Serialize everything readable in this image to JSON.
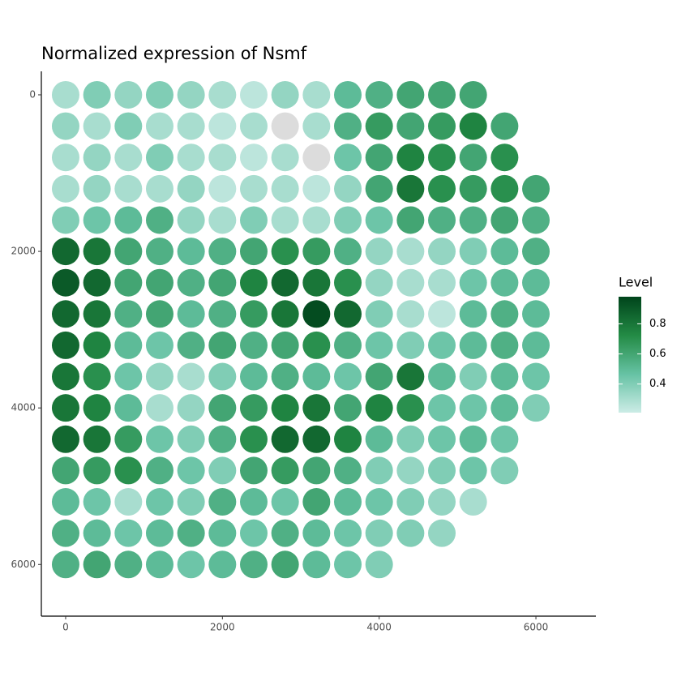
{
  "chart_data": {
    "type": "scatter",
    "title": "Normalized expression of Nsmf",
    "legend_title": "Level",
    "x": [
      0,
      400,
      800,
      1200,
      1600,
      2000,
      2400,
      2800,
      3200,
      3600,
      4000,
      4400,
      4800,
      5200,
      0,
      400,
      800,
      1200,
      1600,
      2000,
      2400,
      2800,
      3200,
      3600,
      4000,
      4400,
      4800,
      5200,
      5600,
      0,
      400,
      800,
      1200,
      1600,
      2000,
      2400,
      2800,
      3200,
      3600,
      4000,
      4400,
      4800,
      5200,
      5600,
      0,
      400,
      800,
      1200,
      1600,
      2000,
      2400,
      2800,
      3200,
      3600,
      4000,
      4400,
      4800,
      5200,
      5600,
      6000,
      0,
      400,
      800,
      1200,
      1600,
      2000,
      2400,
      2800,
      3200,
      3600,
      4000,
      4400,
      4800,
      5200,
      5600,
      6000,
      0,
      400,
      800,
      1200,
      1600,
      2000,
      2400,
      2800,
      3200,
      3600,
      4000,
      4400,
      4800,
      5200,
      5600,
      6000,
      0,
      400,
      800,
      1200,
      1600,
      2000,
      2400,
      2800,
      3200,
      3600,
      4000,
      4400,
      4800,
      5200,
      5600,
      6000,
      0,
      400,
      800,
      1200,
      1600,
      2000,
      2400,
      2800,
      3200,
      3600,
      4000,
      4400,
      4800,
      5200,
      5600,
      6000,
      0,
      400,
      800,
      1200,
      1600,
      2000,
      2400,
      2800,
      3200,
      3600,
      4000,
      4400,
      4800,
      5200,
      5600,
      6000,
      0,
      400,
      800,
      1200,
      1600,
      2000,
      2400,
      2800,
      3200,
      3600,
      4000,
      4400,
      4800,
      5200,
      5600,
      6000,
      0,
      400,
      800,
      1200,
      1600,
      2000,
      2400,
      2800,
      3200,
      3600,
      4000,
      4400,
      4800,
      5200,
      5600,
      6000,
      0,
      400,
      800,
      1200,
      1600,
      2000,
      2400,
      2800,
      3200,
      3600,
      4000,
      4400,
      4800,
      5200,
      5600,
      0,
      400,
      800,
      1200,
      1600,
      2000,
      2400,
      2800,
      3200,
      3600,
      4000,
      4400,
      4800,
      5200,
      5600,
      0,
      400,
      800,
      1200,
      1600,
      2000,
      2400,
      2800,
      3200,
      3600,
      4000,
      4400,
      4800,
      5200,
      0,
      400,
      800,
      1200,
      1600,
      2000,
      2400,
      2800,
      3200,
      3600,
      4000,
      4400,
      4800,
      0,
      400,
      800,
      1200,
      1600,
      2000,
      2400,
      2800,
      3200,
      3600,
      4000
    ],
    "y": [
      0,
      0,
      0,
      0,
      0,
      0,
      0,
      0,
      0,
      0,
      0,
      0,
      0,
      0,
      400,
      400,
      400,
      400,
      400,
      400,
      400,
      400,
      400,
      400,
      400,
      400,
      400,
      400,
      400,
      800,
      800,
      800,
      800,
      800,
      800,
      800,
      800,
      800,
      800,
      800,
      800,
      800,
      800,
      800,
      1200,
      1200,
      1200,
      1200,
      1200,
      1200,
      1200,
      1200,
      1200,
      1200,
      1200,
      1200,
      1200,
      1200,
      1200,
      1200,
      1600,
      1600,
      1600,
      1600,
      1600,
      1600,
      1600,
      1600,
      1600,
      1600,
      1600,
      1600,
      1600,
      1600,
      1600,
      1600,
      2000,
      2000,
      2000,
      2000,
      2000,
      2000,
      2000,
      2000,
      2000,
      2000,
      2000,
      2000,
      2000,
      2000,
      2000,
      2000,
      2400,
      2400,
      2400,
      2400,
      2400,
      2400,
      2400,
      2400,
      2400,
      2400,
      2400,
      2400,
      2400,
      2400,
      2400,
      2400,
      2800,
      2800,
      2800,
      2800,
      2800,
      2800,
      2800,
      2800,
      2800,
      2800,
      2800,
      2800,
      2800,
      2800,
      2800,
      2800,
      3200,
      3200,
      3200,
      3200,
      3200,
      3200,
      3200,
      3200,
      3200,
      3200,
      3200,
      3200,
      3200,
      3200,
      3200,
      3200,
      3600,
      3600,
      3600,
      3600,
      3600,
      3600,
      3600,
      3600,
      3600,
      3600,
      3600,
      3600,
      3600,
      3600,
      3600,
      3600,
      4000,
      4000,
      4000,
      4000,
      4000,
      4000,
      4000,
      4000,
      4000,
      4000,
      4000,
      4000,
      4000,
      4000,
      4000,
      4000,
      4400,
      4400,
      4400,
      4400,
      4400,
      4400,
      4400,
      4400,
      4400,
      4400,
      4400,
      4400,
      4400,
      4400,
      4400,
      4800,
      4800,
      4800,
      4800,
      4800,
      4800,
      4800,
      4800,
      4800,
      4800,
      4800,
      4800,
      4800,
      4800,
      4800,
      5200,
      5200,
      5200,
      5200,
      5200,
      5200,
      5200,
      5200,
      5200,
      5200,
      5200,
      5200,
      5200,
      5200,
      5600,
      5600,
      5600,
      5600,
      5600,
      5600,
      5600,
      5600,
      5600,
      5600,
      5600,
      5600,
      5600,
      6000,
      6000,
      6000,
      6000,
      6000,
      6000,
      6000,
      6000,
      6000,
      6000,
      6000
    ],
    "values": [
      0.3,
      0.4,
      0.35,
      0.4,
      0.35,
      0.3,
      0.25,
      0.35,
      0.3,
      0.5,
      0.55,
      0.6,
      0.6,
      0.6,
      0.35,
      0.3,
      0.4,
      0.3,
      0.3,
      0.25,
      0.3,
      0.2,
      0.3,
      0.55,
      0.65,
      0.6,
      0.65,
      0.75,
      0.6,
      0.3,
      0.35,
      0.3,
      0.4,
      0.3,
      0.3,
      0.25,
      0.3,
      0.2,
      0.45,
      0.6,
      0.75,
      0.7,
      0.6,
      0.7,
      0.3,
      0.35,
      0.3,
      0.3,
      0.35,
      0.25,
      0.3,
      0.3,
      0.25,
      0.35,
      0.6,
      0.8,
      0.7,
      0.65,
      0.7,
      0.6,
      0.4,
      0.45,
      0.5,
      0.55,
      0.35,
      0.3,
      0.4,
      0.3,
      0.3,
      0.4,
      0.45,
      0.6,
      0.55,
      0.55,
      0.6,
      0.55,
      0.85,
      0.8,
      0.6,
      0.55,
      0.5,
      0.55,
      0.6,
      0.7,
      0.65,
      0.55,
      0.35,
      0.3,
      0.35,
      0.4,
      0.5,
      0.55,
      0.9,
      0.85,
      0.6,
      0.6,
      0.55,
      0.6,
      0.75,
      0.85,
      0.8,
      0.7,
      0.35,
      0.3,
      0.3,
      0.45,
      0.5,
      0.5,
      0.85,
      0.8,
      0.55,
      0.6,
      0.5,
      0.55,
      0.65,
      0.8,
      0.95,
      0.85,
      0.4,
      0.3,
      0.25,
      0.5,
      0.55,
      0.5,
      0.85,
      0.75,
      0.5,
      0.45,
      0.55,
      0.6,
      0.55,
      0.6,
      0.7,
      0.55,
      0.45,
      0.4,
      0.45,
      0.5,
      0.55,
      0.5,
      0.8,
      0.7,
      0.45,
      0.35,
      0.3,
      0.4,
      0.5,
      0.55,
      0.5,
      0.45,
      0.6,
      0.8,
      0.5,
      0.4,
      0.5,
      0.45,
      0.8,
      0.75,
      0.5,
      0.3,
      0.35,
      0.6,
      0.65,
      0.75,
      0.8,
      0.6,
      0.75,
      0.7,
      0.45,
      0.45,
      0.5,
      0.4,
      0.85,
      0.8,
      0.65,
      0.45,
      0.4,
      0.55,
      0.7,
      0.85,
      0.85,
      0.75,
      0.5,
      0.4,
      0.45,
      0.5,
      0.45,
      0.6,
      0.65,
      0.7,
      0.55,
      0.45,
      0.4,
      0.6,
      0.65,
      0.6,
      0.55,
      0.4,
      0.35,
      0.4,
      0.45,
      0.4,
      0.5,
      0.45,
      0.3,
      0.45,
      0.4,
      0.55,
      0.5,
      0.45,
      0.6,
      0.5,
      0.45,
      0.4,
      0.35,
      0.3,
      0.55,
      0.5,
      0.45,
      0.5,
      0.55,
      0.5,
      0.45,
      0.55,
      0.5,
      0.45,
      0.4,
      0.4,
      0.35,
      0.55,
      0.6,
      0.55,
      0.5,
      0.45,
      0.5,
      0.55,
      0.6,
      0.5,
      0.45,
      0.4
    ],
    "xlim": [
      -310,
      6765
    ],
    "ylim": [
      6660,
      -300
    ],
    "xticks": [
      0,
      2000,
      4000,
      6000
    ],
    "yticks": [
      0,
      2000,
      4000,
      6000
    ],
    "clim": [
      0.21,
      0.98
    ],
    "cticks": [
      0.4,
      0.6,
      0.8
    ],
    "colors": [
      "#ccece6",
      "#66c2a4",
      "#238b45",
      "#00441b"
    ],
    "na_color": "#dcdcdc"
  }
}
